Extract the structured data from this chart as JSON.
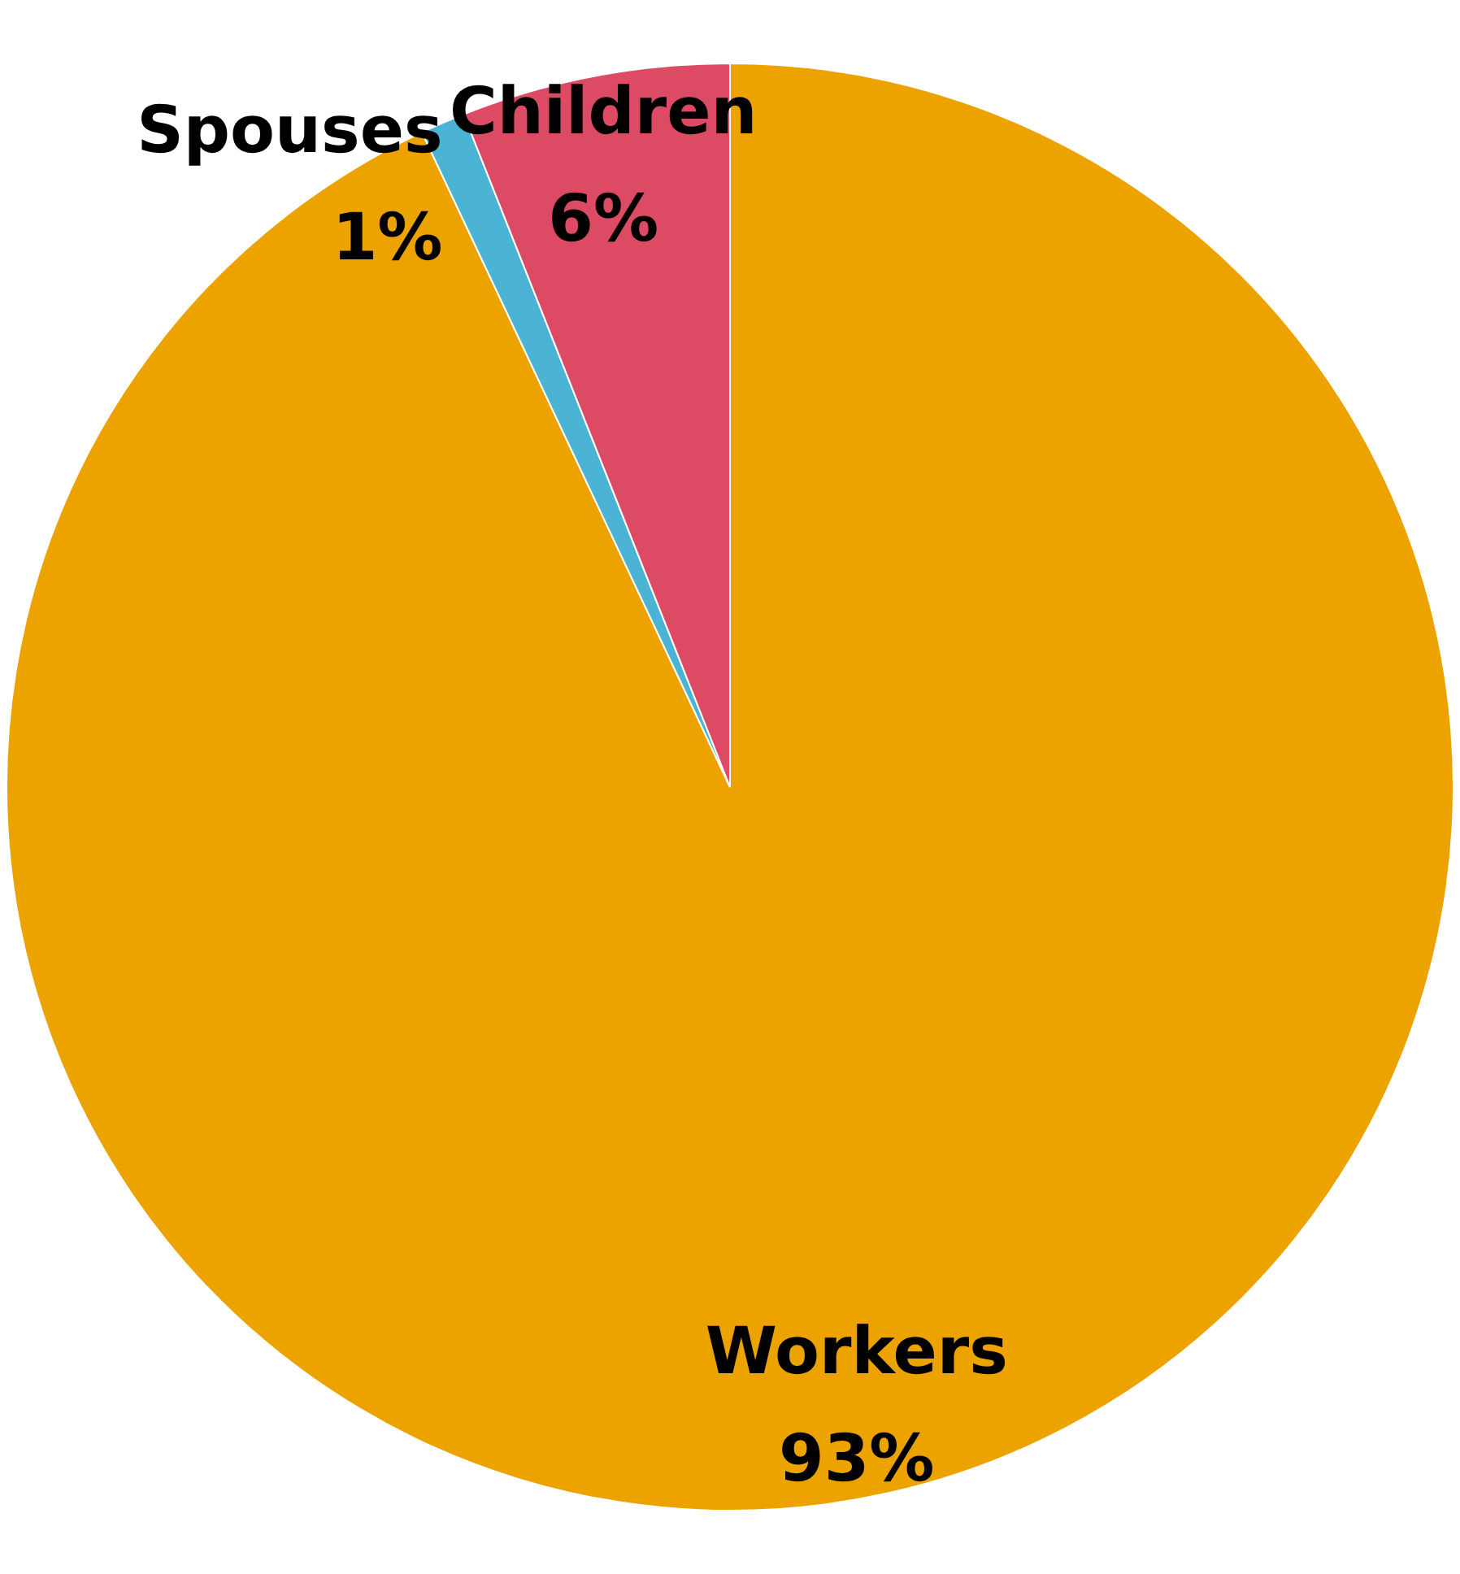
{
  "chart_data": {
    "type": "pie",
    "categories": [
      "Workers",
      "Spouses",
      "Children"
    ],
    "values": [
      93,
      1,
      6
    ],
    "colors": [
      "#eca300",
      "#4bb3d3",
      "#dc4a64"
    ],
    "value_labels": [
      "93%",
      "1%",
      "6%"
    ]
  }
}
